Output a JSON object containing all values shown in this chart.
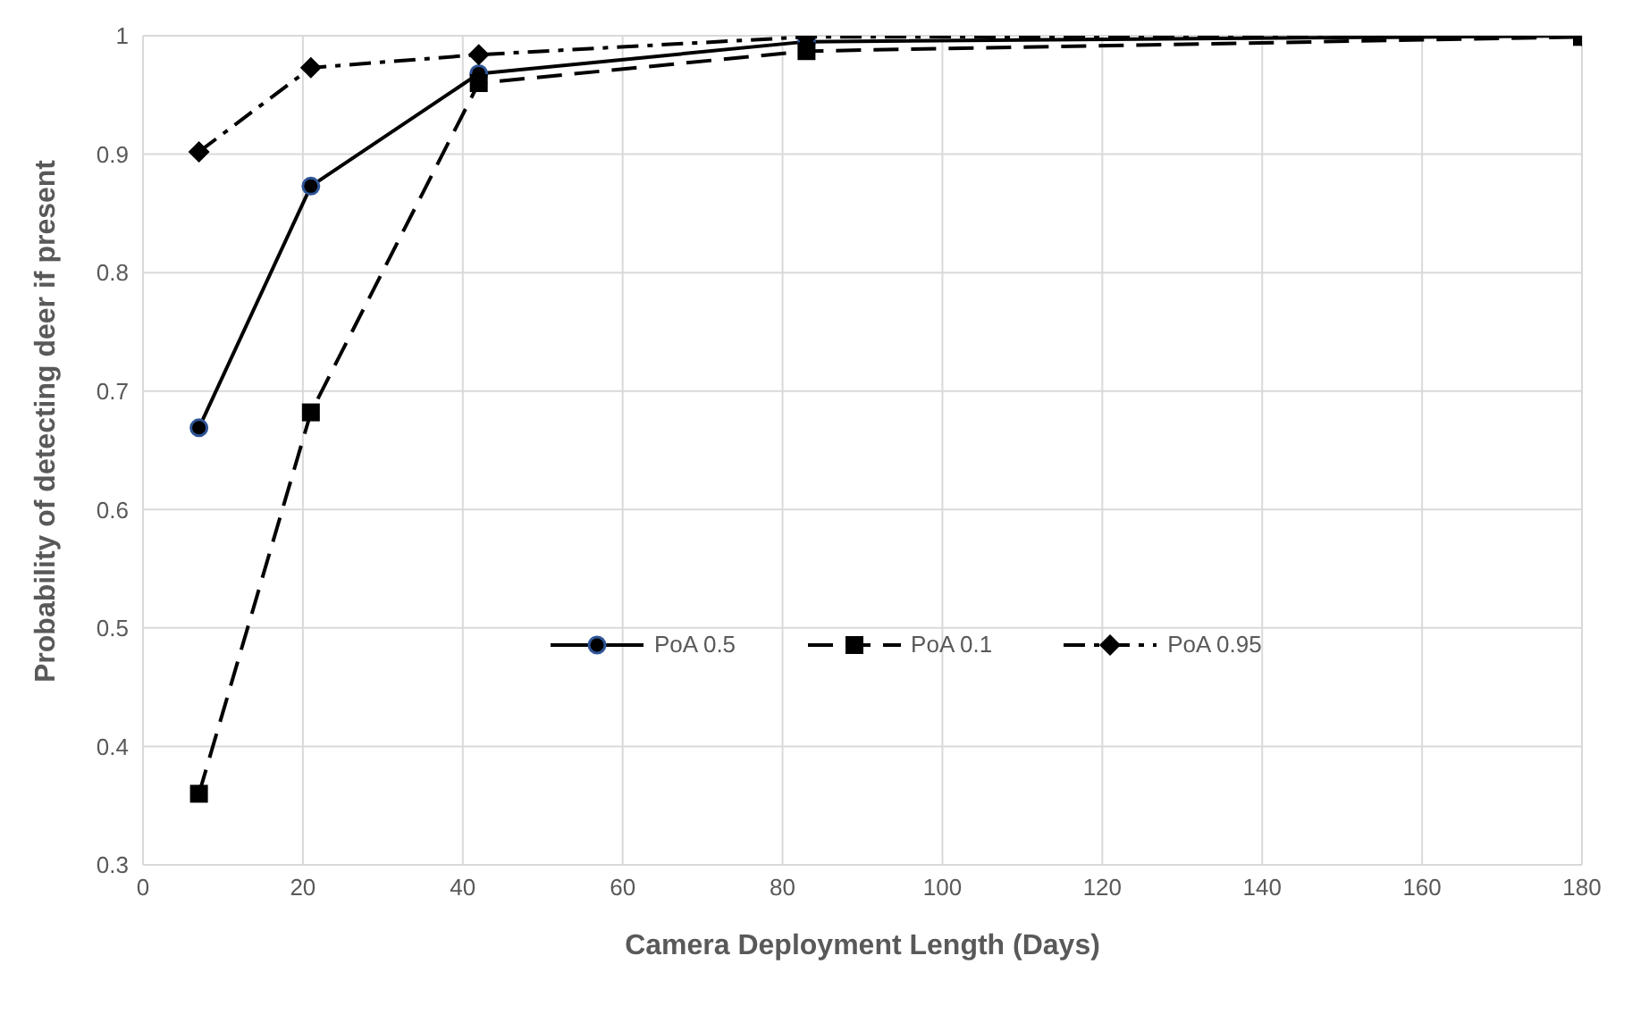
{
  "chart_data": {
    "type": "line",
    "xlabel": "Camera Deployment Length (Days)",
    "ylabel": "Probability of detecting deer if present",
    "x": [
      7,
      21,
      42,
      83,
      180
    ],
    "series": [
      {
        "name": "PoA 0.5",
        "color": "#000000",
        "values": [
          0.669,
          0.873,
          0.968,
          0.995,
          1.0
        ],
        "marker": "circle",
        "line_style": "solid"
      },
      {
        "name": "PoA 0.1",
        "color": "#000000",
        "values": [
          0.36,
          0.682,
          0.96,
          0.987,
          0.999
        ],
        "marker": "square",
        "line_style": "dashed"
      },
      {
        "name": "PoA 0.95",
        "color": "#000000",
        "values": [
          0.902,
          0.973,
          0.984,
          0.999,
          1.0
        ],
        "marker": "diamond",
        "line_style": "dotted"
      }
    ],
    "xlim": [
      0,
      180
    ],
    "xticks": [
      0,
      20,
      40,
      60,
      80,
      100,
      120,
      140,
      160,
      180
    ],
    "ylim": [
      0.3,
      1
    ],
    "yticks": [
      0.3,
      0.4,
      0.5,
      0.6,
      0.7,
      0.8,
      0.9,
      1
    ],
    "grid": true,
    "legend": "center"
  }
}
